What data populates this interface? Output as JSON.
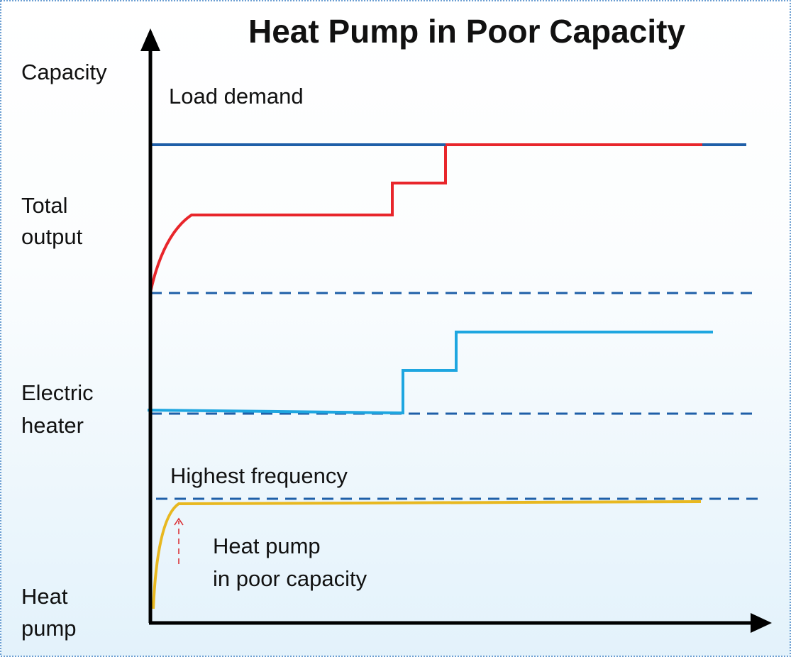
{
  "title": "Heat Pump in Poor Capacity",
  "labels": {
    "capacity": "Capacity",
    "load_demand": "Load demand",
    "total_output": [
      "Total",
      "output"
    ],
    "electric_heater": [
      "Electric",
      "heater"
    ],
    "highest_frequency": "Highest frequency",
    "heat_pump_poor": [
      "Heat pump",
      "in poor capacity"
    ],
    "heat_pump": [
      "Heat",
      "pump"
    ]
  }
}
